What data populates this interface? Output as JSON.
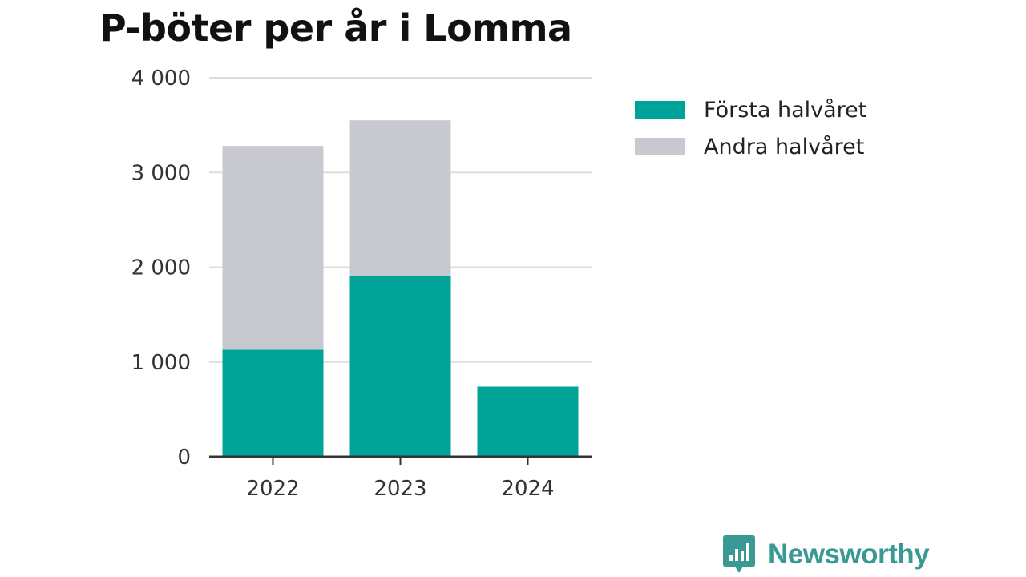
{
  "colors": {
    "first_half": "#00a398",
    "second_half": "#c8c8d0",
    "grid": "#dddddd",
    "axis": "#333333",
    "brand": "#3a9a93"
  },
  "legend_position": "top-right",
  "brand": {
    "name": "Newsworthy",
    "icon": "newsworthy-logo-icon"
  },
  "chart_data": {
    "type": "bar",
    "stacked": true,
    "title": "P-böter per år i Lomma",
    "xlabel": "",
    "ylabel": "",
    "categories": [
      "2022",
      "2023",
      "2024"
    ],
    "series": [
      {
        "name": "Första halvåret",
        "values": [
          1130,
          1910,
          740
        ]
      },
      {
        "name": "Andra halvåret",
        "values": [
          2150,
          1640,
          0
        ]
      }
    ],
    "ylim": [
      0,
      4000
    ],
    "yticks": [
      0,
      1000,
      2000,
      3000,
      4000
    ],
    "ytick_labels": [
      "0",
      "1 000",
      "2 000",
      "3 000",
      "4 000"
    ],
    "grid": true
  }
}
